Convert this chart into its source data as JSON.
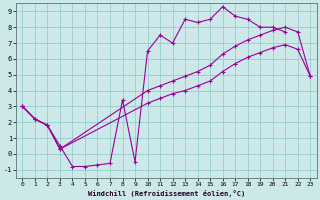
{
  "xlabel": "Windchill (Refroidissement éolien,°C)",
  "bg_color": "#cce8e8",
  "grid_color": "#99cccc",
  "line_color": "#990099",
  "xlim": [
    -0.5,
    23.5
  ],
  "ylim": [
    -1.5,
    9.5
  ],
  "xticks": [
    0,
    1,
    2,
    3,
    4,
    5,
    6,
    7,
    8,
    9,
    10,
    11,
    12,
    13,
    14,
    15,
    16,
    17,
    18,
    19,
    20,
    21,
    22,
    23
  ],
  "yticks": [
    -1,
    0,
    1,
    2,
    3,
    4,
    5,
    6,
    7,
    8,
    9
  ],
  "line1_x": [
    0,
    1,
    2,
    3,
    4,
    5,
    6,
    7,
    8,
    9,
    10,
    11,
    12,
    13,
    14,
    15,
    16,
    17,
    18,
    19,
    20,
    21
  ],
  "line1_y": [
    3.0,
    2.2,
    1.8,
    0.5,
    -0.8,
    -0.8,
    -0.7,
    -0.6,
    3.4,
    -0.5,
    6.5,
    7.5,
    7.0,
    8.5,
    8.3,
    8.5,
    9.3,
    8.7,
    8.5,
    8.0,
    8.0,
    7.7
  ],
  "line2_x": [
    0,
    1,
    2,
    3,
    10,
    11,
    12,
    13,
    14,
    15,
    16,
    17,
    18,
    19,
    20,
    21,
    22,
    23
  ],
  "line2_y": [
    3.0,
    2.2,
    1.8,
    0.3,
    4.0,
    4.3,
    4.6,
    4.9,
    5.2,
    5.6,
    6.3,
    6.8,
    7.2,
    7.5,
    7.8,
    8.0,
    7.7,
    4.9
  ],
  "line3_x": [
    0,
    1,
    2,
    3,
    10,
    11,
    12,
    13,
    14,
    15,
    16,
    17,
    18,
    19,
    20,
    21,
    22,
    23
  ],
  "line3_y": [
    3.0,
    2.2,
    1.8,
    0.3,
    3.2,
    3.5,
    3.8,
    4.0,
    4.3,
    4.6,
    5.2,
    5.7,
    6.1,
    6.4,
    6.7,
    6.9,
    6.6,
    4.9
  ]
}
